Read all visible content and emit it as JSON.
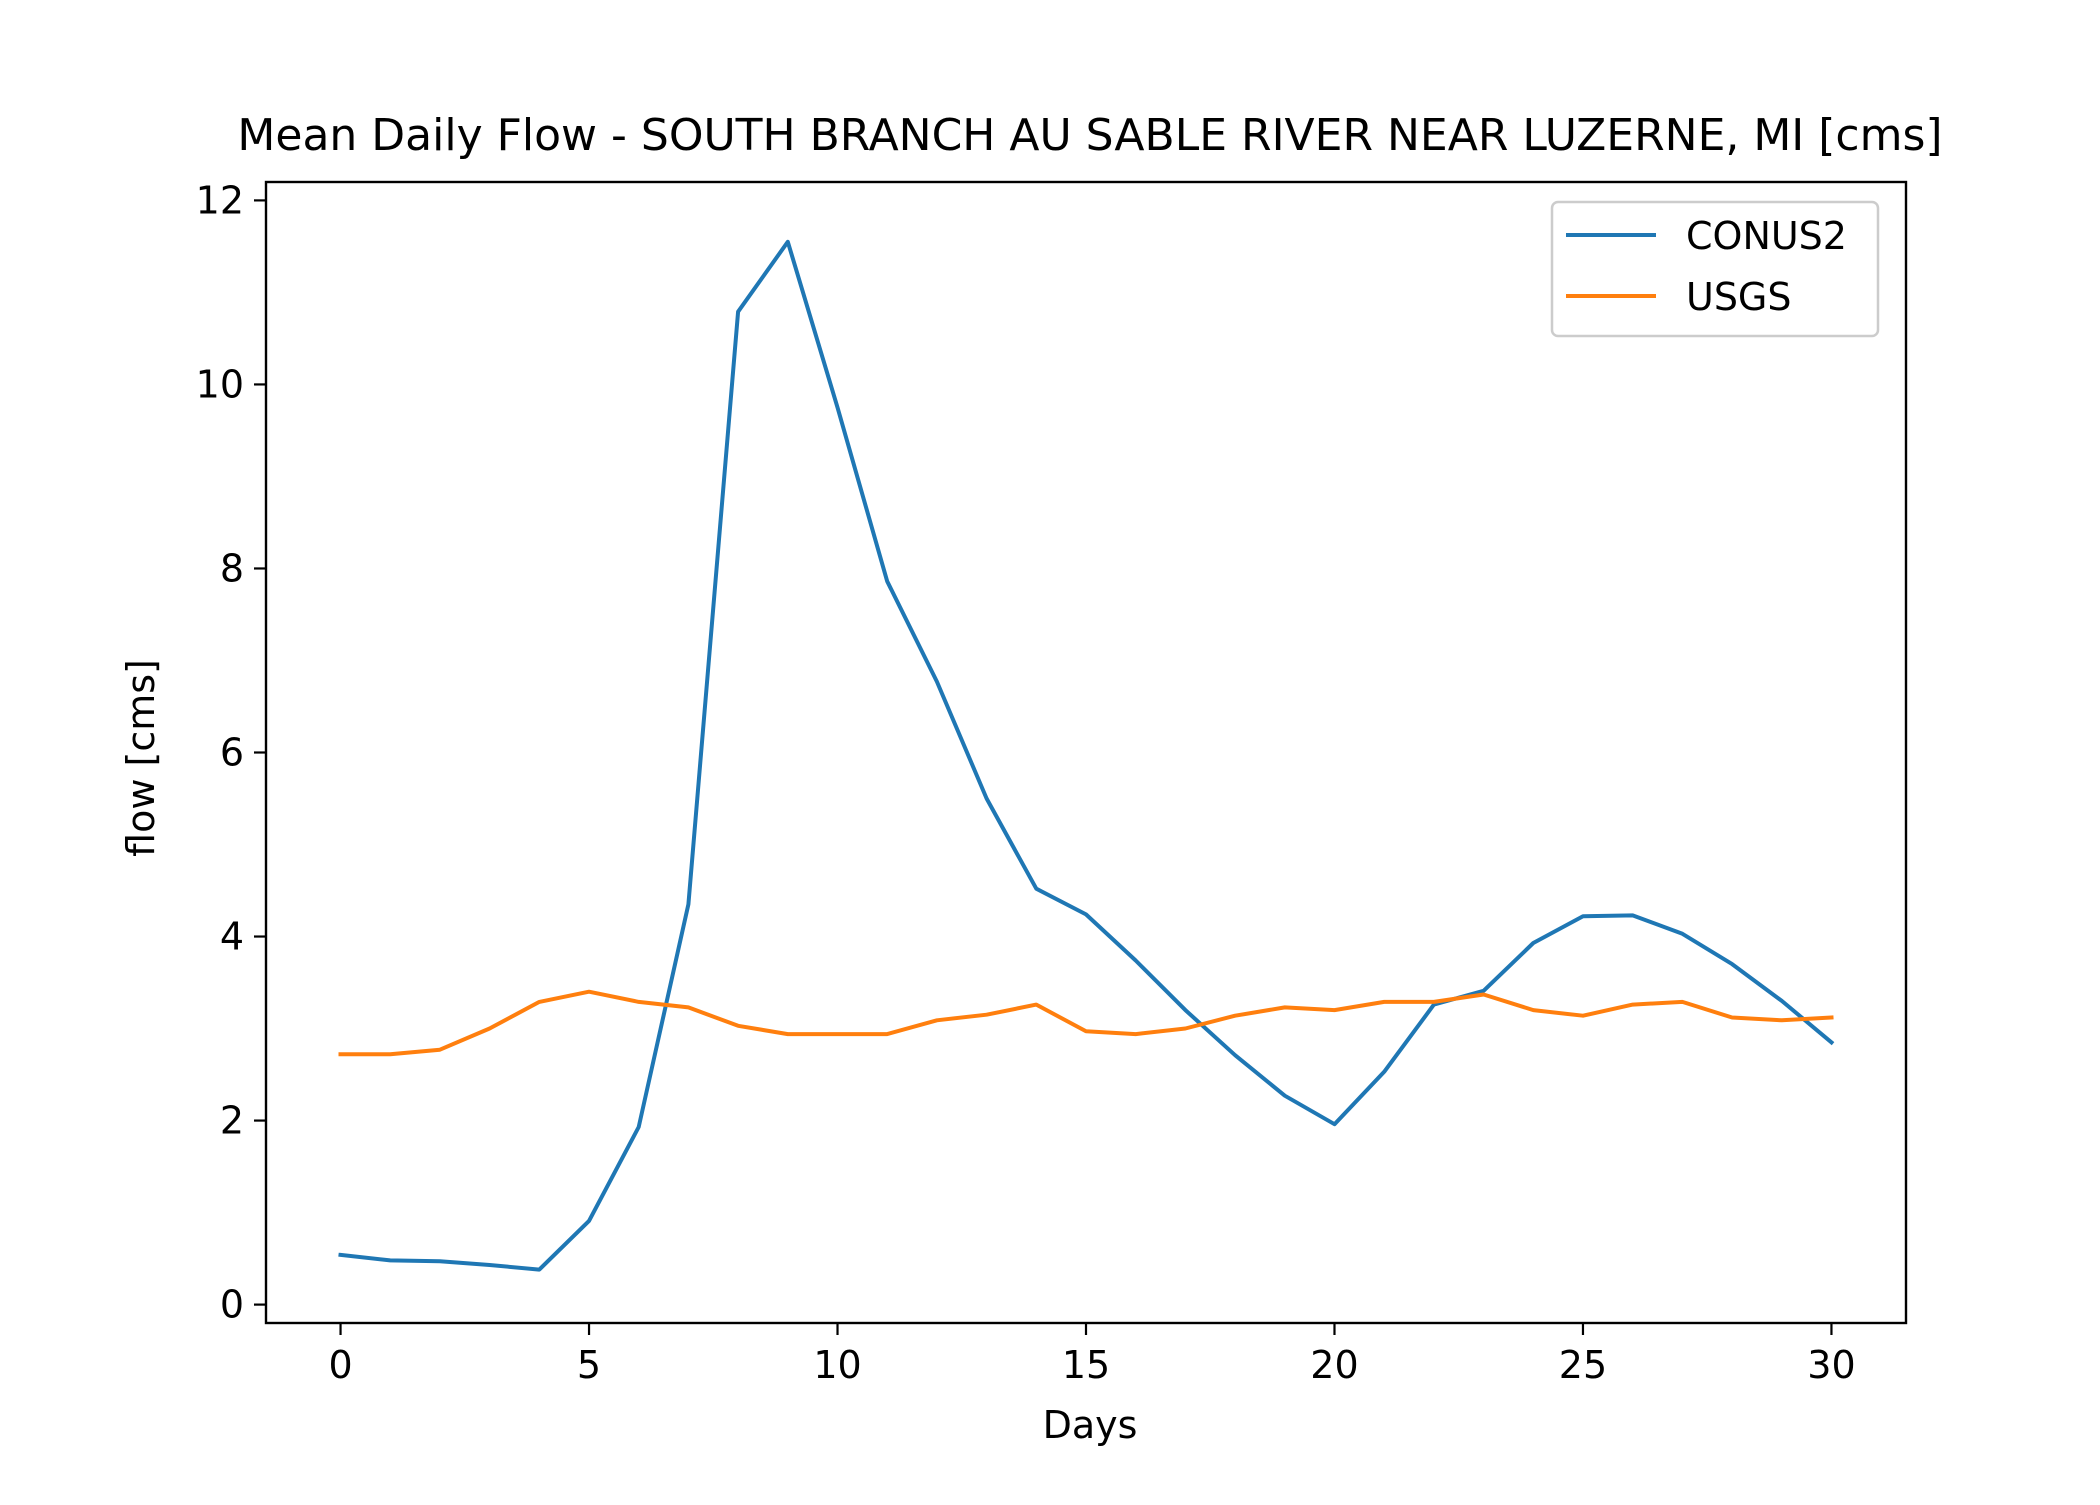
{
  "chart_data": {
    "type": "line",
    "title": "Mean Daily Flow - SOUTH BRANCH AU SABLE RIVER NEAR LUZERNE, MI [cms]",
    "xlabel": "Days",
    "ylabel": "flow [cms]",
    "xlim": [
      -1.5,
      31.5
    ],
    "ylim": [
      -0.2,
      12.2
    ],
    "xticks": [
      0,
      5,
      10,
      15,
      20,
      25,
      30
    ],
    "yticks": [
      0,
      2,
      4,
      6,
      8,
      10,
      12
    ],
    "grid": false,
    "legend_position": "top-right",
    "x": [
      0,
      1,
      2,
      3,
      4,
      5,
      6,
      7,
      8,
      9,
      10,
      11,
      12,
      13,
      14,
      15,
      16,
      17,
      18,
      19,
      20,
      21,
      22,
      23,
      24,
      25,
      26,
      27,
      28,
      29,
      30
    ],
    "series": [
      {
        "name": "CONUS2",
        "color": "#1f77b4",
        "values": [
          0.54,
          0.48,
          0.47,
          0.43,
          0.38,
          0.91,
          1.93,
          4.35,
          10.79,
          11.55,
          9.75,
          7.86,
          6.77,
          5.5,
          4.52,
          4.24,
          3.74,
          3.2,
          2.71,
          2.27,
          1.96,
          2.53,
          3.26,
          3.41,
          3.93,
          4.22,
          4.23,
          4.03,
          3.7,
          3.3,
          2.85
        ]
      },
      {
        "name": "USGS",
        "color": "#ff7f0e",
        "values": [
          2.72,
          2.72,
          2.77,
          3.0,
          3.29,
          3.4,
          3.29,
          3.23,
          3.03,
          2.94,
          2.94,
          2.94,
          3.09,
          3.15,
          3.26,
          2.97,
          2.94,
          3.0,
          3.14,
          3.23,
          3.2,
          3.29,
          3.29,
          3.37,
          3.2,
          3.14,
          3.26,
          3.29,
          3.12,
          3.09,
          3.12
        ]
      }
    ]
  }
}
